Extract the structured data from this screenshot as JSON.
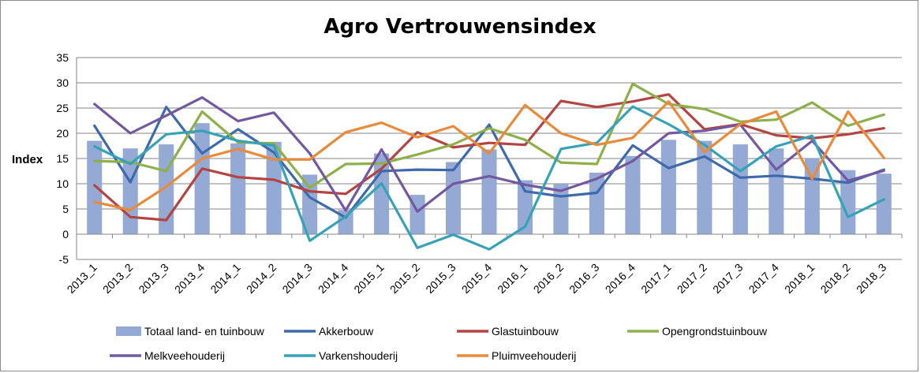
{
  "chart_data": {
    "type": "bar+line",
    "title": "Agro Vertrouwensindex",
    "ylabel": "Index",
    "xlabel": "",
    "ylim": [
      -5,
      35
    ],
    "yticks": [
      -5,
      0,
      5,
      10,
      15,
      20,
      25,
      30,
      35
    ],
    "grid": true,
    "legend_position": "bottom",
    "categories": [
      "2013_1",
      "2013_2",
      "2013_3",
      "2013_4",
      "2014_1",
      "2014_2",
      "2014_3",
      "2014_4",
      "2015_1",
      "2015_2",
      "2015_3",
      "2015_4",
      "2016_1",
      "2016_2",
      "2016_3",
      "2016_4",
      "2017_1",
      "2017_2",
      "2017_3",
      "2017_4",
      "2018_1",
      "2018_2",
      "2018_3"
    ],
    "bars": {
      "name": "Totaal land- en tuinbouw",
      "color": "#95a9d5",
      "values": [
        18.5,
        17.0,
        17.8,
        22.0,
        18.0,
        18.3,
        11.8,
        4.8,
        16.0,
        7.8,
        14.3,
        16.8,
        10.7,
        10.0,
        12.2,
        15.5,
        18.7,
        18.5,
        17.8,
        17.0,
        15.0,
        12.7,
        12.0
      ]
    },
    "series": [
      {
        "name": "Akkerbouw",
        "color": "#3e6aad",
        "values": [
          21.5,
          10.3,
          25.2,
          16.0,
          20.8,
          16.2,
          7.3,
          3.3,
          12.5,
          12.8,
          12.7,
          21.7,
          8.5,
          7.5,
          8.2,
          17.6,
          13.1,
          15.4,
          11.2,
          11.6,
          11.0,
          10.2,
          12.8
        ]
      },
      {
        "name": "Glastuinbouw",
        "color": "#b34441",
        "values": [
          9.7,
          3.4,
          2.8,
          13.0,
          11.3,
          10.8,
          8.5,
          8.0,
          13.0,
          20.2,
          17.2,
          18.1,
          17.7,
          26.4,
          25.2,
          26.3,
          27.7,
          20.8,
          21.8,
          19.6,
          19.0,
          19.8,
          21.0
        ]
      },
      {
        "name": "Opengrondstuinbouw",
        "color": "#8db04b",
        "values": [
          14.5,
          14.3,
          12.5,
          24.3,
          18.2,
          18.0,
          9.2,
          13.9,
          14.0,
          15.8,
          17.8,
          21.0,
          18.7,
          14.2,
          13.9,
          29.8,
          25.8,
          24.8,
          22.3,
          22.7,
          26.1,
          21.5,
          23.7
        ]
      },
      {
        "name": "Melkveehouderij",
        "color": "#7358a0",
        "values": [
          25.8,
          20.0,
          23.5,
          27.1,
          22.4,
          24.1,
          16.0,
          4.7,
          16.8,
          4.5,
          10.0,
          11.5,
          9.8,
          8.6,
          11.0,
          14.5,
          20.0,
          20.5,
          21.7,
          12.8,
          18.5,
          10.6,
          12.6
        ]
      },
      {
        "name": "Varkenshouderij",
        "color": "#36a2b8",
        "values": [
          17.4,
          13.9,
          19.8,
          20.5,
          18.5,
          17.6,
          -1.3,
          3.5,
          10.1,
          -2.7,
          -0.1,
          -3.0,
          1.5,
          16.9,
          18.1,
          25.3,
          21.8,
          17.7,
          12.5,
          17.4,
          19.5,
          3.4,
          6.9
        ]
      },
      {
        "name": "Pluimveehouderij",
        "color": "#e88a3a",
        "values": [
          6.4,
          4.8,
          9.4,
          15.0,
          16.9,
          14.8,
          14.8,
          20.2,
          22.1,
          19.2,
          21.4,
          16.0,
          25.6,
          20.0,
          17.7,
          19.1,
          26.3,
          16.3,
          21.8,
          24.3,
          11.0,
          24.3,
          15.1
        ]
      }
    ],
    "legend_rows": [
      [
        "Totaal land- en tuinbouw",
        "Akkerbouw",
        "Glastuinbouw",
        "Opengrondstuinbouw"
      ],
      [
        "Melkveehouderij",
        "Varkenshouderij",
        "Pluimveehouderij"
      ]
    ]
  }
}
